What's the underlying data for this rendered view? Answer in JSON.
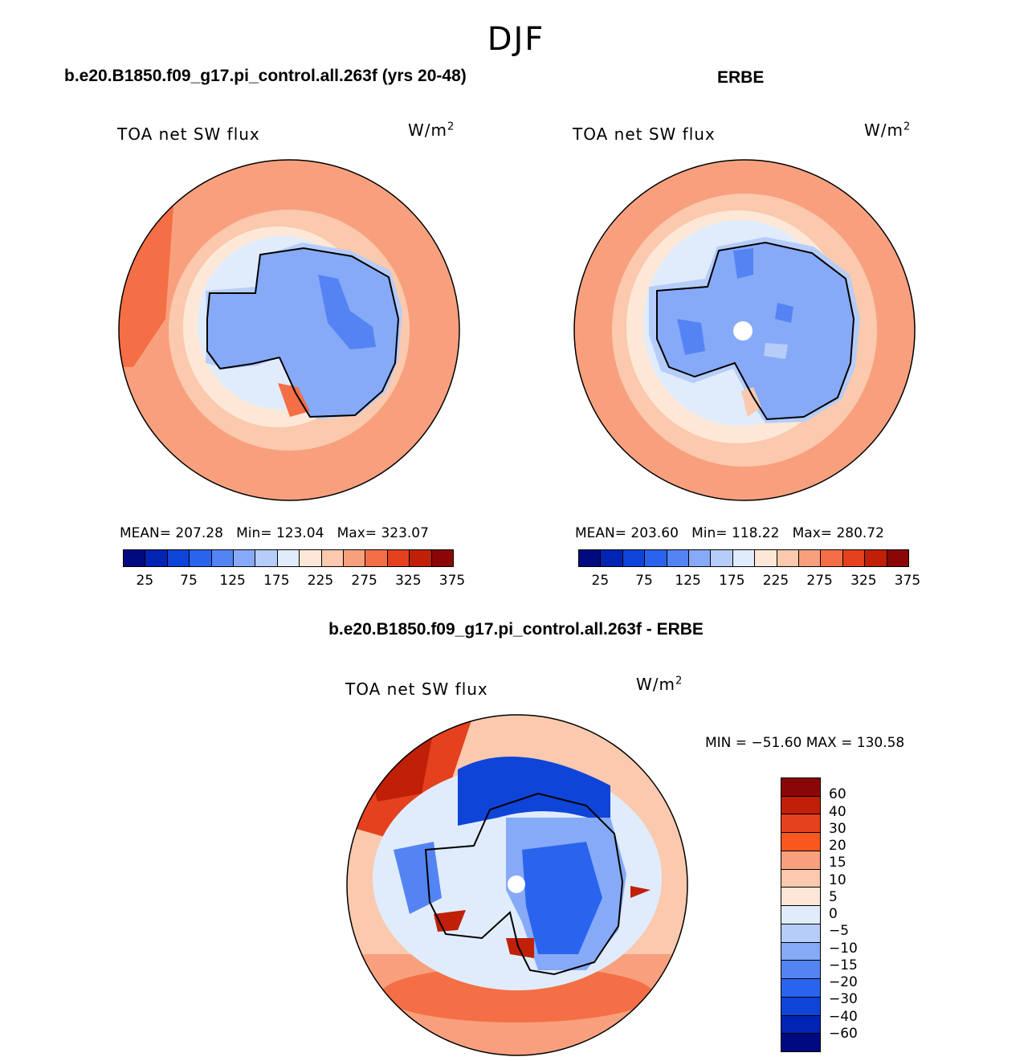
{
  "figure": {
    "season": "DJF",
    "colors": {
      "abs_scale": [
        "#000a80",
        "#0224b4",
        "#0f44d8",
        "#2a64ee",
        "#5484f4",
        "#86aaf7",
        "#b6cdfa",
        "#e0ecfc",
        "#fde8d8",
        "#fbc9ad",
        "#f8a07e",
        "#f46f45",
        "#e5411e",
        "#c02008",
        "#8a0706"
      ],
      "diff_scale": [
        "#8a0706",
        "#c02008",
        "#e5411e",
        "#f8581e",
        "#f8a07e",
        "#fbc9ad",
        "#fde8d8",
        "#e0ecfc",
        "#b6cdfa",
        "#86aaf7",
        "#5484f4",
        "#2a64ee",
        "#0f44d8",
        "#0224b4",
        "#000a80"
      ]
    }
  },
  "panels": [
    {
      "title": "b.e20.B1850.f09_g17.pi_control.all.263f (yrs 20-48)",
      "variable": "TOA net SW flux",
      "units": "W/m",
      "units_exp": "2",
      "stats": {
        "mean_label": "MEAN=",
        "mean": "207.28",
        "min_label": "Min=",
        "min": "123.04",
        "max_label": "Max=",
        "max": "323.07"
      },
      "colorbar_labels": [
        "25",
        "75",
        "125",
        "175",
        "225",
        "275",
        "325",
        "375"
      ]
    },
    {
      "title": "ERBE",
      "variable": "TOA net SW flux",
      "units": "W/m",
      "units_exp": "2",
      "stats": {
        "mean_label": "MEAN=",
        "mean": "203.60",
        "min_label": "Min=",
        "min": "118.22",
        "max_label": "Max=",
        "max": "280.72"
      },
      "colorbar_labels": [
        "25",
        "75",
        "125",
        "175",
        "225",
        "275",
        "325",
        "375"
      ]
    },
    {
      "title": "b.e20.B1850.f09_g17.pi_control.all.263f - ERBE",
      "variable": "TOA net SW flux",
      "units": "W/m",
      "units_exp": "2",
      "minmax": "MIN = −51.60 MAX = 130.58",
      "colorbar_labels": [
        "60",
        "40",
        "30",
        "20",
        "15",
        "10",
        "5",
        "0",
        "−5",
        "−10",
        "−15",
        "−20",
        "−30",
        "−40",
        "−60"
      ]
    }
  ]
}
